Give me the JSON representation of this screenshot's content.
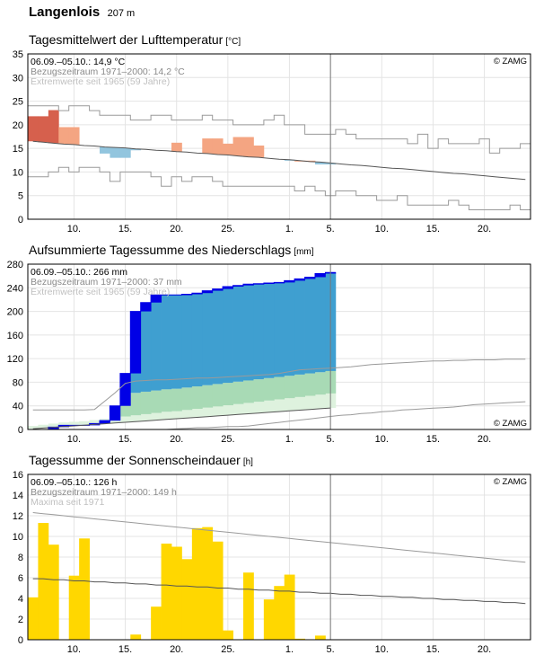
{
  "station": {
    "name": "Langenlois",
    "elevation": "207 m"
  },
  "chart_data": [
    {
      "type": "bar",
      "title": "Tagesmittelwert der Lufttemperatur",
      "unit": "[°C]",
      "info_current": "06.09.–05.10.: 14,9 °C",
      "info_reference": "Bezugszeitraum 1971–2000: 14,2 °C",
      "info_extremes": "Extremwerte seit 1965 (59 Jahre)",
      "copyright": "© ZAMG",
      "ylim": [
        0,
        35
      ],
      "yticks": [
        "0",
        "5",
        "10",
        "15",
        "20",
        "25",
        "30",
        "35"
      ],
      "x_ticks": [
        {
          "day": 4,
          "label": "10."
        },
        {
          "day": 9,
          "label": "15."
        },
        {
          "day": 14,
          "label": "20."
        },
        {
          "day": 19,
          "label": "25."
        },
        {
          "day": 25,
          "label": "1."
        },
        {
          "day": 29,
          "label": "5."
        },
        {
          "day": 34,
          "label": "10."
        },
        {
          "day": 39,
          "label": "15."
        },
        {
          "day": 44,
          "label": "20."
        }
      ],
      "marker_day": 29.5,
      "series": [
        {
          "values": [
            21.8,
            21.8,
            23.1,
            19.5,
            19.5,
            null,
            null,
            13.9,
            13.0,
            13.0,
            14.6,
            null,
            null,
            null,
            16.2,
            null,
            null,
            17.1,
            17.1,
            16.0,
            17.4,
            17.4,
            15.6,
            null,
            null,
            12.4,
            12.4,
            12.4,
            11.6,
            11.6
          ]
        },
        {
          "values": [
            16.5,
            16.3,
            16.1,
            15.9,
            15.8,
            15.6,
            15.5,
            15.3,
            15.2,
            15.1,
            14.9,
            14.8,
            14.6,
            14.5,
            14.3,
            14.2,
            14.0,
            13.9,
            13.7,
            13.6,
            13.4,
            13.2,
            13.1,
            12.9,
            12.7,
            12.6,
            12.4,
            12.2,
            12.1,
            11.9,
            11.7,
            11.5,
            11.4,
            11.2,
            11.0,
            10.8,
            10.7,
            10.5,
            10.3,
            10.1,
            9.9,
            9.7,
            9.6,
            9.4,
            9.2,
            9.0,
            8.8,
            8.6,
            8.4
          ]
        },
        {
          "values": [
            24,
            24,
            24,
            23,
            24,
            24,
            23,
            22,
            22,
            22,
            21,
            21,
            22,
            22,
            21,
            21,
            21,
            22,
            21,
            21,
            20,
            20,
            20,
            21,
            22,
            20,
            20,
            18,
            18,
            18,
            19,
            18,
            17,
            17,
            17,
            17,
            17,
            16,
            18,
            15,
            17,
            16,
            16,
            16,
            17,
            14,
            15,
            15,
            16
          ]
        },
        {
          "values": [
            9,
            9,
            10,
            11,
            10,
            11,
            11,
            10,
            8,
            10,
            10,
            10,
            9,
            7,
            9,
            8,
            9,
            9,
            8,
            7,
            7,
            7,
            7,
            7,
            7,
            7,
            6,
            7,
            6,
            5,
            6,
            6,
            5,
            5,
            4,
            4,
            5,
            3,
            3,
            3,
            3,
            4,
            3,
            2,
            2,
            2,
            2,
            3,
            2
          ]
        }
      ]
    },
    {
      "type": "area",
      "title": "Aufsummierte Tagessumme des Niederschlags",
      "unit": "[mm]",
      "info_current": "06.09.–05.10.: 266 mm",
      "info_reference": "Bezugszeitraum 1971–2000: 37 mm",
      "info_extremes": "Extremwerte seit 1965 (59 Jahre)",
      "copyright": "© ZAMG",
      "ylim": [
        0,
        280
      ],
      "yticks": [
        "0",
        "40",
        "80",
        "120",
        "160",
        "200",
        "240",
        "280"
      ],
      "x_ticks": [
        {
          "day": 4,
          "label": "10."
        },
        {
          "day": 9,
          "label": "15."
        },
        {
          "day": 14,
          "label": "20."
        },
        {
          "day": 19,
          "label": "25."
        },
        {
          "day": 25,
          "label": "1."
        },
        {
          "day": 29,
          "label": "5."
        },
        {
          "day": 34,
          "label": "10."
        },
        {
          "day": 39,
          "label": "15."
        },
        {
          "day": 44,
          "label": "20."
        }
      ],
      "marker_day": 29.5,
      "series": [
        {
          "values": [
            0,
            0,
            4,
            7,
            7,
            7,
            10,
            15,
            40,
            95,
            200,
            215,
            228,
            228,
            228,
            229,
            231,
            235,
            238,
            242,
            244,
            246,
            247,
            248,
            249,
            252,
            255,
            258,
            264,
            266
          ]
        },
        {
          "values": [
            1.2,
            2.4,
            3.6,
            4.8,
            6.1,
            7.3,
            8.5,
            9.7,
            10.9,
            12.1,
            13.3,
            14.5,
            15.8,
            17.0,
            18.2,
            19.4,
            20.6,
            21.8,
            23.0,
            24.2,
            25.5,
            26.7,
            27.9,
            29.1,
            30.3,
            31.5,
            32.7,
            33.9,
            35.2,
            36.4
          ]
        },
        {
          "values": [
            6,
            8,
            10,
            12,
            13,
            14,
            16,
            18,
            20,
            22,
            24,
            26,
            28,
            30,
            31,
            33,
            35,
            37,
            39,
            41,
            43,
            45,
            47,
            49,
            51,
            53,
            55,
            57,
            59,
            61
          ]
        },
        {
          "values": [
            33,
            33,
            33,
            33,
            33,
            33,
            34,
            48,
            62,
            78,
            82,
            83,
            84,
            84,
            85,
            86,
            87,
            87,
            88,
            89,
            90,
            91,
            92,
            93,
            95,
            98,
            101,
            102,
            103,
            104,
            105,
            106,
            108,
            110,
            111,
            112,
            113,
            114,
            115,
            116,
            116,
            117,
            117,
            118,
            118,
            118,
            119,
            119,
            119
          ]
        },
        {
          "values": [
            0,
            0,
            0,
            0,
            0,
            0,
            0,
            0,
            0,
            0,
            0,
            0,
            0,
            0,
            1,
            2,
            3,
            3,
            4,
            5,
            5,
            6,
            8,
            10,
            12,
            14,
            16,
            18,
            20,
            22,
            24,
            25,
            27,
            28,
            30,
            31,
            33,
            34,
            35,
            36,
            37,
            38,
            40,
            42,
            43,
            44,
            45,
            46,
            47
          ]
        }
      ]
    },
    {
      "type": "bar",
      "title": "Tagessumme der Sonnenscheindauer",
      "unit": "[h]",
      "info_current": "06.09.–05.10.: 126 h",
      "info_reference": "Bezugszeitraum 1971–2000: 149 h",
      "info_extremes": "Maxima seit 1971",
      "copyright": "© ZAMG",
      "ylim": [
        0,
        16
      ],
      "yticks": [
        "0",
        "2",
        "4",
        "6",
        "8",
        "10",
        "12",
        "14",
        "16"
      ],
      "x_ticks": [
        {
          "day": 4,
          "label": "10."
        },
        {
          "day": 9,
          "label": "15."
        },
        {
          "day": 14,
          "label": "20."
        },
        {
          "day": 19,
          "label": "25."
        },
        {
          "day": 25,
          "label": "1."
        },
        {
          "day": 29,
          "label": "5."
        },
        {
          "day": 34,
          "label": "10."
        },
        {
          "day": 39,
          "label": "15."
        },
        {
          "day": 44,
          "label": "20."
        }
      ],
      "marker_day": 29.5,
      "series": [
        {
          "values": [
            4.1,
            11.3,
            9.2,
            0,
            6.2,
            9.8,
            0,
            0,
            0,
            0,
            0.5,
            0,
            3.2,
            9.3,
            9.0,
            7.8,
            10.8,
            10.9,
            9.5,
            0.9,
            0,
            6.5,
            0,
            3.9,
            5.2,
            6.3,
            0.1,
            0,
            0.4,
            0
          ]
        },
        {
          "values": [
            12.3,
            12.2,
            12.1,
            12.0,
            11.9,
            11.8,
            11.7,
            11.6,
            11.5,
            11.4,
            11.3,
            11.2,
            11.1,
            11.0,
            10.9,
            10.8,
            10.7,
            10.6,
            10.5,
            10.4,
            10.3,
            10.2,
            10.1,
            10.0,
            9.9,
            9.8,
            9.7,
            9.6,
            9.5,
            9.4,
            9.3,
            9.2,
            9.1,
            9.0,
            8.9,
            8.8,
            8.7,
            8.6,
            8.5,
            8.4,
            8.3,
            8.2,
            8.1,
            8.0,
            7.9,
            7.8,
            7.7,
            7.6,
            7.5
          ]
        },
        {
          "values": [
            5.9,
            5.9,
            5.8,
            5.8,
            5.7,
            5.7,
            5.6,
            5.6,
            5.5,
            5.5,
            5.4,
            5.4,
            5.3,
            5.3,
            5.2,
            5.2,
            5.1,
            5.1,
            5.0,
            5.0,
            4.9,
            4.9,
            4.8,
            4.8,
            4.7,
            4.7,
            4.6,
            4.6,
            4.5,
            4.5,
            4.4,
            4.4,
            4.3,
            4.3,
            4.2,
            4.2,
            4.1,
            4.1,
            4.0,
            4.0,
            3.9,
            3.9,
            3.8,
            3.8,
            3.7,
            3.7,
            3.6,
            3.6,
            3.5
          ]
        }
      ]
    }
  ]
}
